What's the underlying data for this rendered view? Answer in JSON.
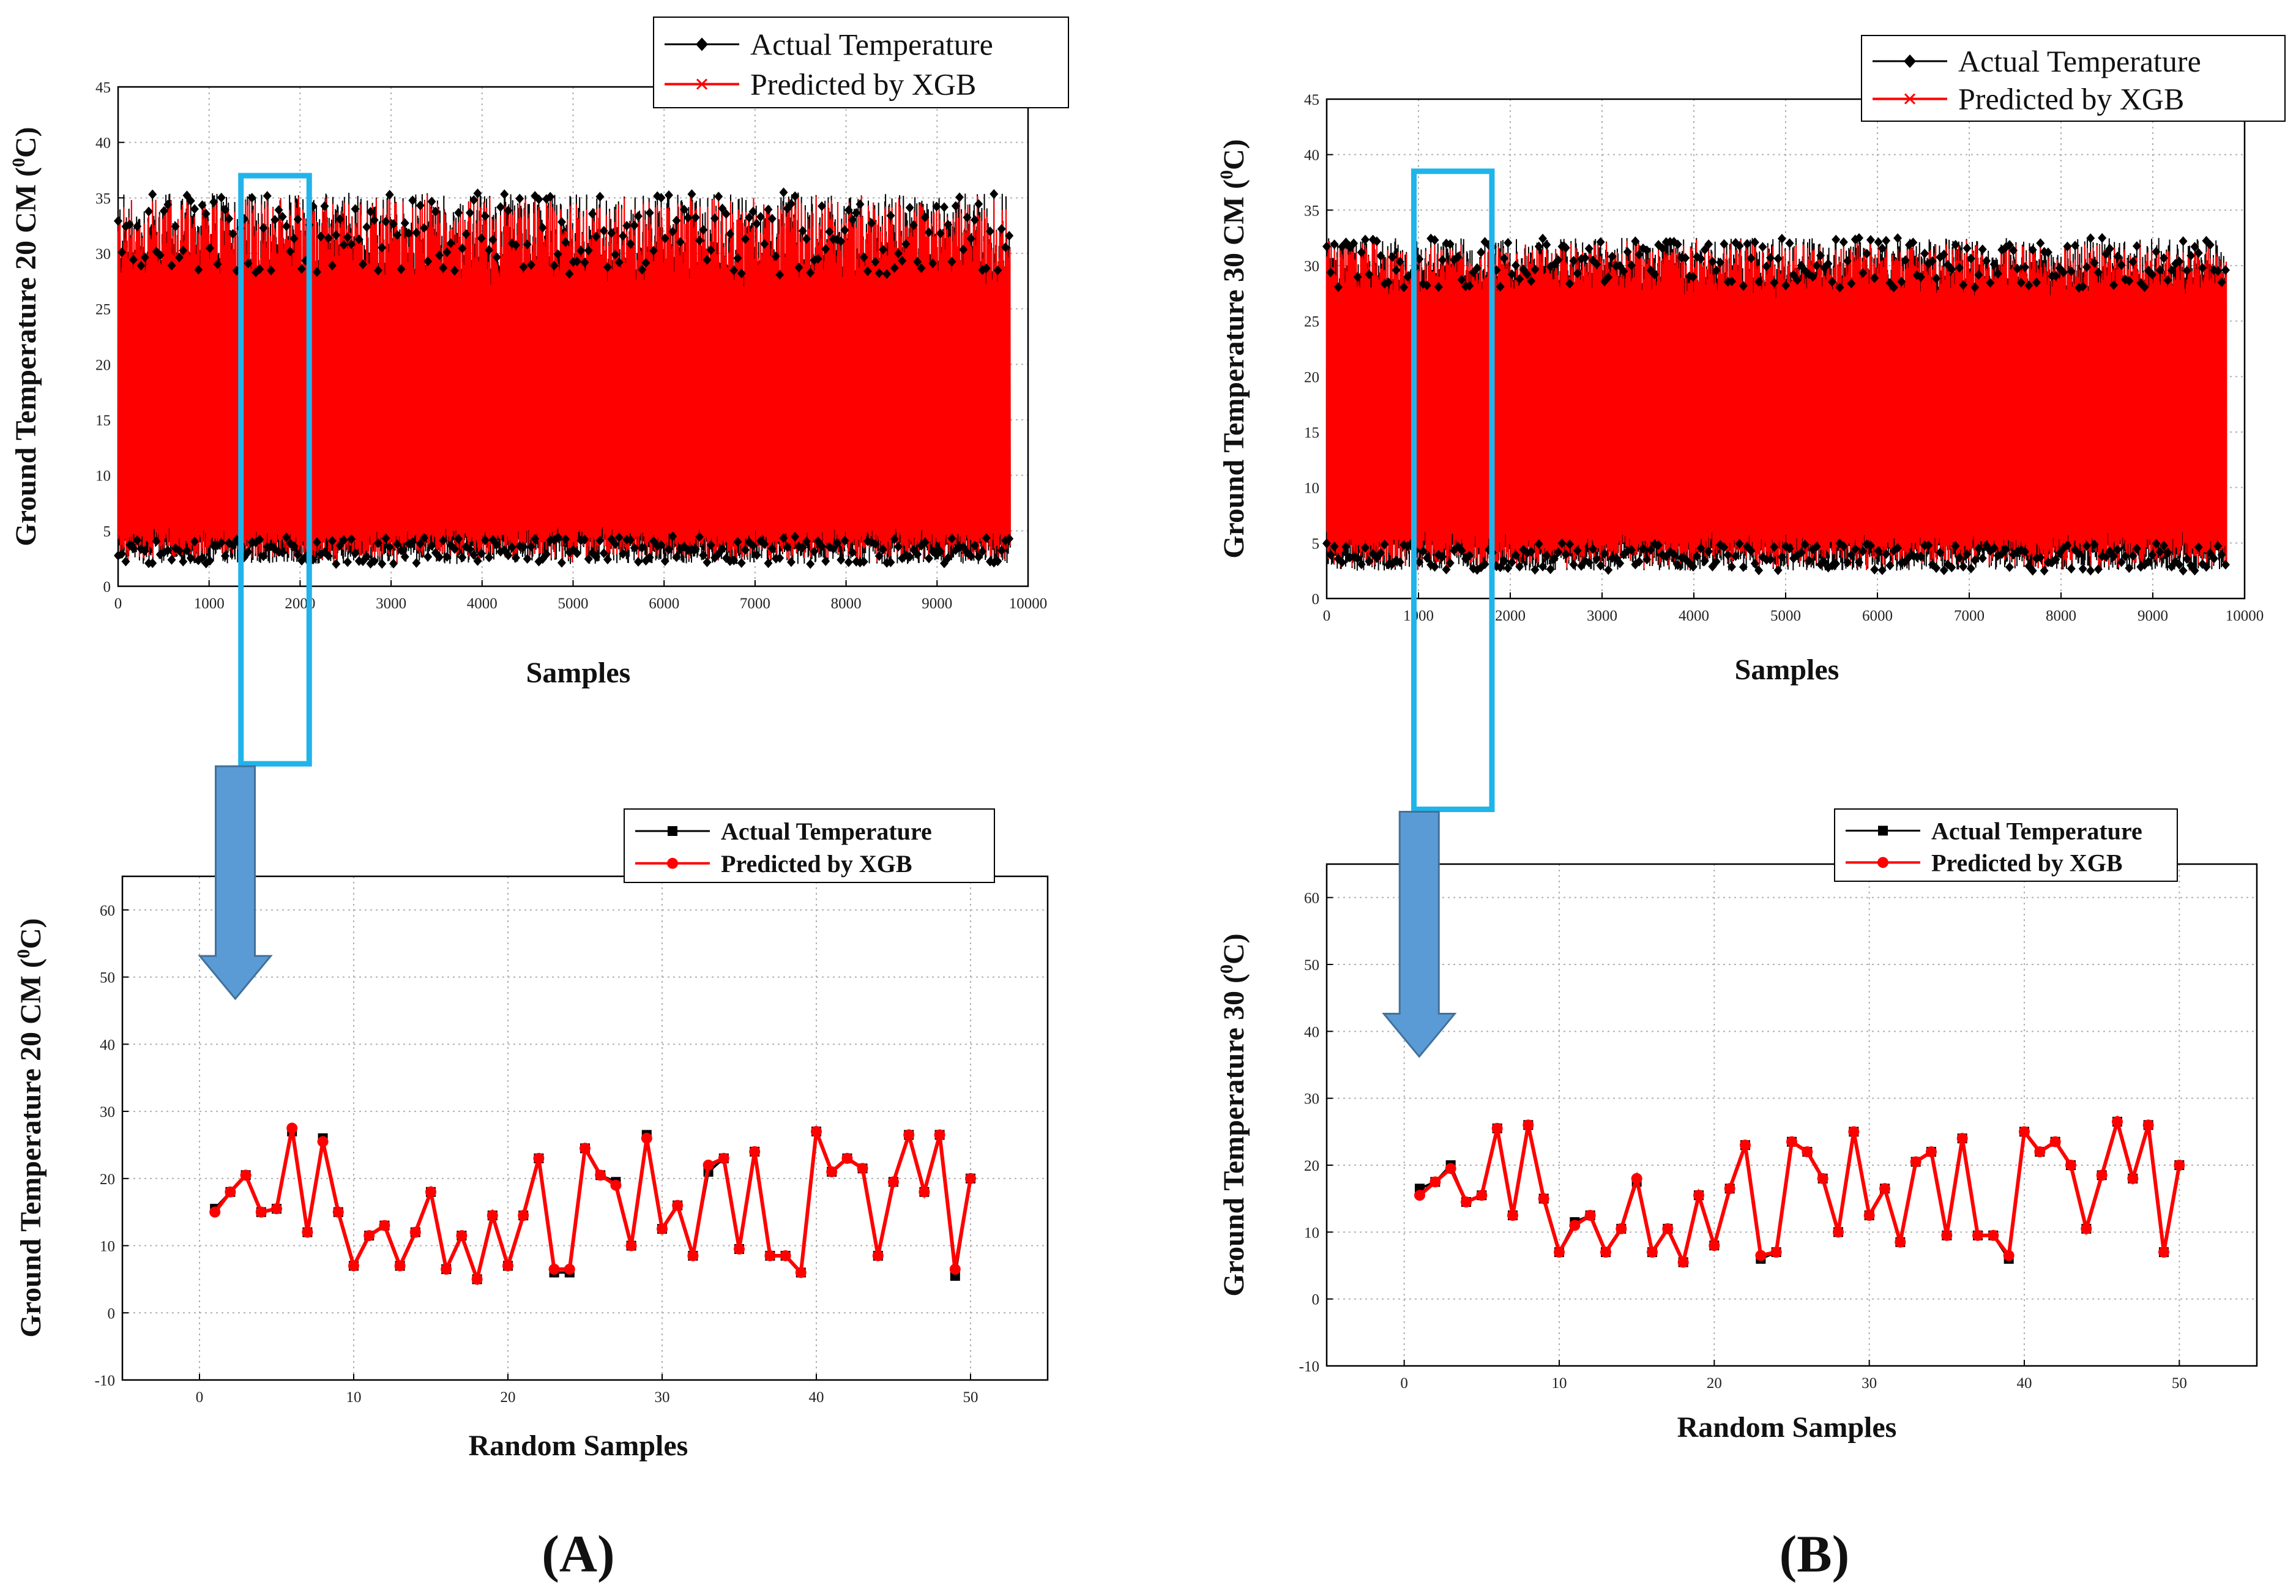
{
  "panel_labels": {
    "a": "(A)",
    "b": "(B)"
  },
  "colors": {
    "actual": "#000000",
    "predicted": "#ff0000",
    "box": "#20b4ea",
    "arrow": "#5b9bd5",
    "arrow_edge": "#41719c",
    "grid": "#b0b0b0"
  },
  "chart_data": [
    {
      "id": "a_top",
      "type": "line",
      "title": "",
      "xlabel": "Samples",
      "ylabel": "Ground Temperature 20 CM (",
      "ylabel_sup": "0",
      "ylabel_end": "C)",
      "xlim": [
        0,
        10000
      ],
      "ylim": [
        0,
        45
      ],
      "xticks": [
        0,
        1000,
        2000,
        3000,
        4000,
        5000,
        6000,
        7000,
        8000,
        9000,
        10000
      ],
      "yticks": [
        0,
        5,
        10,
        15,
        20,
        25,
        30,
        35,
        40,
        45
      ],
      "n_samples": 9800,
      "band_low": [
        2,
        4.5
      ],
      "band_high": [
        28,
        35.5
      ],
      "series": [
        {
          "name": "Actual Temperature",
          "marker": "diamond"
        },
        {
          "name": "Predicted by XGB",
          "marker": "x"
        }
      ],
      "highlight_box": {
        "x": [
          1350,
          2100
        ],
        "y": [
          -16,
          37
        ]
      }
    },
    {
      "id": "b_top",
      "type": "line",
      "title": "",
      "xlabel": "Samples",
      "ylabel": "Ground Temperature 30 CM (",
      "ylabel_sup": "0",
      "ylabel_end": "C)",
      "xlim": [
        0,
        10000
      ],
      "ylim": [
        0,
        45
      ],
      "xticks": [
        0,
        1000,
        2000,
        3000,
        4000,
        5000,
        6000,
        7000,
        8000,
        9000,
        10000
      ],
      "yticks": [
        0,
        5,
        10,
        15,
        20,
        25,
        30,
        35,
        40,
        45
      ],
      "n_samples": 9800,
      "band_low": [
        2.5,
        5
      ],
      "band_high": [
        28,
        32.5
      ],
      "series": [
        {
          "name": "Actual Temperature",
          "marker": "diamond"
        },
        {
          "name": "Predicted by XGB",
          "marker": "x"
        }
      ],
      "highlight_box": {
        "x": [
          950,
          1800
        ],
        "y": [
          -19,
          38.5
        ]
      }
    },
    {
      "id": "a_bottom",
      "type": "line",
      "title": "",
      "xlabel": "Random Samples",
      "ylabel": "Ground Temperature 20 CM (",
      "ylabel_sup": "0",
      "ylabel_end": "C)",
      "xlim": [
        -5,
        55
      ],
      "ylim": [
        -10,
        65
      ],
      "xticks": [
        0,
        10,
        20,
        30,
        40,
        50
      ],
      "yticks": [
        -10,
        0,
        10,
        20,
        30,
        40,
        50,
        60
      ],
      "x": [
        1,
        2,
        3,
        4,
        5,
        6,
        7,
        8,
        9,
        10,
        11,
        12,
        13,
        14,
        15,
        16,
        17,
        18,
        19,
        20,
        21,
        22,
        23,
        24,
        25,
        26,
        27,
        28,
        29,
        30,
        31,
        32,
        33,
        34,
        35,
        36,
        37,
        38,
        39,
        40,
        41,
        42,
        43,
        44,
        45,
        46,
        47,
        48,
        49,
        50
      ],
      "series": [
        {
          "name": "Actual Temperature",
          "marker": "square",
          "values": [
            15.5,
            18,
            20.5,
            15,
            15.5,
            27,
            12,
            26,
            15,
            7,
            11.5,
            13,
            7,
            12,
            18,
            6.5,
            11.5,
            5,
            14.5,
            7,
            14.5,
            23,
            6,
            6,
            24.5,
            20.5,
            19.5,
            10,
            26.5,
            12.5,
            16,
            8.5,
            21,
            23,
            9.5,
            24,
            8.5,
            8.5,
            6,
            27,
            21,
            23,
            21.5,
            8.5,
            19.5,
            26.5,
            18,
            26.5,
            5.5,
            20
          ]
        },
        {
          "name": "Predicted by XGB",
          "marker": "circle",
          "values": [
            15,
            18,
            20.5,
            15,
            15.5,
            27.5,
            12,
            25.5,
            15,
            7,
            11.5,
            13,
            7,
            12,
            18,
            6.5,
            11.5,
            5,
            14.5,
            7,
            14.5,
            23,
            6.5,
            6.5,
            24.5,
            20.5,
            19,
            10,
            26,
            12.5,
            16,
            8.5,
            22,
            23,
            9.5,
            24,
            8.5,
            8.5,
            6,
            27,
            21,
            23,
            21.5,
            8.5,
            19.5,
            26.5,
            18,
            26.5,
            6.5,
            20
          ]
        }
      ]
    },
    {
      "id": "b_bottom",
      "type": "line",
      "title": "",
      "xlabel": "Random Samples",
      "ylabel": "Ground Temperature 30 (",
      "ylabel_sup": "0",
      "ylabel_end": "C)",
      "xlim": [
        -5,
        55
      ],
      "ylim": [
        -10,
        65
      ],
      "xticks": [
        0,
        10,
        20,
        30,
        40,
        50
      ],
      "yticks": [
        -10,
        0,
        10,
        20,
        30,
        40,
        50,
        60
      ],
      "x": [
        1,
        2,
        3,
        4,
        5,
        6,
        7,
        8,
        9,
        10,
        11,
        12,
        13,
        14,
        15,
        16,
        17,
        18,
        19,
        20,
        21,
        22,
        23,
        24,
        25,
        26,
        27,
        28,
        29,
        30,
        31,
        32,
        33,
        34,
        35,
        36,
        37,
        38,
        39,
        40,
        41,
        42,
        43,
        44,
        45,
        46,
        47,
        48,
        49,
        50
      ],
      "series": [
        {
          "name": "Actual Temperature",
          "marker": "square",
          "values": [
            16.5,
            17.5,
            20,
            14.5,
            15.5,
            25.5,
            12.5,
            26,
            15,
            7,
            11.5,
            12.5,
            7,
            10.5,
            17.5,
            7,
            10.5,
            5.5,
            15.5,
            8,
            16.5,
            23,
            6,
            7,
            23.5,
            22,
            18,
            10,
            25,
            12.5,
            16.5,
            8.5,
            20.5,
            22,
            9.5,
            24,
            9.5,
            9.5,
            6,
            25,
            22,
            23.5,
            20,
            10.5,
            18.5,
            26.5,
            18,
            26,
            7,
            20
          ]
        },
        {
          "name": "Predicted by XGB",
          "marker": "circle",
          "values": [
            15.5,
            17.5,
            19.5,
            14.5,
            15.5,
            25.5,
            12.5,
            26,
            15,
            7,
            11,
            12.5,
            7,
            10.5,
            18,
            7,
            10.5,
            5.5,
            15.5,
            8,
            16.5,
            23,
            6.5,
            7,
            23.5,
            22,
            18,
            10,
            25,
            12.5,
            16.5,
            8.5,
            20.5,
            22,
            9.5,
            24,
            9.5,
            9.5,
            6.5,
            25,
            22,
            23.5,
            20,
            10.5,
            18.5,
            26.5,
            18,
            26,
            7,
            20
          ]
        }
      ]
    }
  ]
}
